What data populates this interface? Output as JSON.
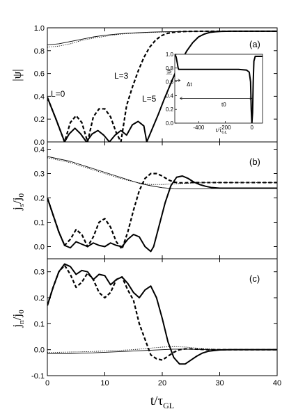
{
  "chart_data": {
    "type": "line",
    "x_axis": {
      "label_main": "t/τ",
      "label_sub": "GL",
      "range": [
        0,
        40
      ],
      "ticks": [
        "0",
        "10",
        "20",
        "30",
        "40"
      ]
    },
    "panels": [
      {
        "id": "a",
        "label": "(a)",
        "ylabel": "|ψ|",
        "yrange": [
          0,
          1.0
        ],
        "yticks": [
          "0.0",
          "0.2",
          "0.4",
          "0.6",
          "0.8",
          "1.0"
        ],
        "series": [
          {
            "style": "thin-solid",
            "x": [
              0,
              2,
              4,
              6,
              8,
              10,
              12,
              14,
              16,
              18,
              20,
              24,
              28,
              32,
              36,
              40
            ],
            "y": [
              0.85,
              0.86,
              0.88,
              0.9,
              0.92,
              0.935,
              0.945,
              0.953,
              0.958,
              0.962,
              0.965,
              0.968,
              0.97,
              0.971,
              0.972,
              0.972
            ]
          },
          {
            "style": "thin-dotted",
            "x": [
              0,
              2,
              4,
              6,
              8,
              10,
              12,
              14,
              16,
              18,
              20,
              24,
              28,
              32,
              36,
              40
            ],
            "y": [
              0.83,
              0.84,
              0.86,
              0.89,
              0.91,
              0.925,
              0.94,
              0.95,
              0.955,
              0.96,
              0.963,
              0.967,
              0.969,
              0.97,
              0.971,
              0.971
            ]
          },
          {
            "style": "thick-solid",
            "x": [
              0,
              1.5,
              3,
              3.8,
              4.8,
              5.8,
              6.8,
              7.8,
              8.8,
              9.8,
              10.8,
              11.8,
              12.8,
              13.8,
              14.8,
              15.8,
              16.8,
              17.3,
              18.3,
              19.3,
              20.3,
              21.3,
              22.3,
              23.3,
              24.3,
              25.3,
              26.3,
              27.3,
              28.3,
              29.3,
              30.3,
              32,
              35,
              40
            ],
            "y": [
              0.39,
              0.2,
              0.0,
              0.07,
              0.12,
              0.07,
              0.0,
              0.07,
              0.1,
              0.06,
              0.0,
              0.06,
              0.1,
              0.06,
              0.15,
              0.18,
              0.14,
              0.0,
              0.12,
              0.24,
              0.37,
              0.49,
              0.61,
              0.71,
              0.8,
              0.87,
              0.92,
              0.945,
              0.96,
              0.966,
              0.969,
              0.97,
              0.97,
              0.97
            ]
          },
          {
            "style": "thick-dashed",
            "x": [
              0,
              1.5,
              3,
              4,
              5,
              6,
              7,
              8,
              9,
              10,
              11,
              12,
              12.8,
              13.8,
              14.8,
              15.8,
              16.8,
              17.8,
              18.8,
              19.8,
              20.8,
              21.8,
              22.8,
              23.8,
              25,
              27,
              30,
              35,
              40
            ],
            "y": [
              0.39,
              0.2,
              0.0,
              0.17,
              0.23,
              0.17,
              0.0,
              0.22,
              0.29,
              0.29,
              0.22,
              0.08,
              0.0,
              0.32,
              0.48,
              0.62,
              0.74,
              0.83,
              0.89,
              0.93,
              0.95,
              0.96,
              0.965,
              0.968,
              0.969,
              0.97,
              0.97,
              0.97,
              0.97
            ]
          }
        ],
        "annotations": [
          "L=0",
          "L=3",
          "L=5"
        ],
        "inset": {
          "ylabel": "|ψ|",
          "xlabel_main": "t/τ",
          "xlabel_sub": "GL",
          "xrange": [
            -580,
            80
          ],
          "yrange": [
            0,
            1.0
          ],
          "xticks": [
            "-400",
            "-200",
            "0"
          ],
          "yticks": [
            "0.0",
            "0.2",
            "0.4",
            "0.6",
            "0.8",
            "1.0"
          ],
          "annotations": [
            "Δt",
            "t0"
          ],
          "series": [
            {
              "style": "thick-solid",
              "x": [
                -580,
                -570,
                -560,
                -555,
                -550,
                -540,
                -500,
                -400,
                -300,
                -200,
                -100,
                -40,
                -20,
                -10,
                -5,
                0,
                5,
                10,
                15,
                25,
                40,
                60,
                80
              ],
              "y": [
                1.0,
                0.96,
                0.86,
                0.8,
                0.78,
                0.78,
                0.78,
                0.78,
                0.78,
                0.78,
                0.78,
                0.77,
                0.74,
                0.6,
                0.2,
                0.0,
                0.15,
                0.6,
                0.9,
                0.97,
                0.97,
                0.97,
                0.97
              ]
            }
          ]
        }
      },
      {
        "id": "b",
        "label": "(b)",
        "ylabel_main": "j",
        "ylabel_sub": "s",
        "ylabel_tail": "/j",
        "ylabel_tail_sub": "0",
        "yrange": [
          -0.05,
          0.43
        ],
        "yticks": [
          "0.0",
          "0.1",
          "0.2",
          "0.3",
          "0.4"
        ],
        "series": [
          {
            "style": "thin-solid",
            "x": [
              0,
              2,
              4,
              6,
              8,
              10,
              12,
              14,
              16,
              18,
              20,
              22,
              24,
              26,
              28,
              30,
              35,
              40
            ],
            "y": [
              0.37,
              0.36,
              0.35,
              0.335,
              0.32,
              0.305,
              0.29,
              0.275,
              0.26,
              0.25,
              0.242,
              0.238,
              0.237,
              0.237,
              0.238,
              0.239,
              0.24,
              0.24
            ]
          },
          {
            "style": "thin-dotted",
            "x": [
              0,
              2,
              4,
              6,
              8,
              10,
              12,
              14,
              16,
              18,
              20,
              22,
              24,
              26,
              28,
              30,
              35,
              40
            ],
            "y": [
              0.365,
              0.355,
              0.345,
              0.33,
              0.315,
              0.3,
              0.285,
              0.272,
              0.262,
              0.255,
              0.255,
              0.258,
              0.26,
              0.262,
              0.263,
              0.263,
              0.263,
              0.263
            ]
          },
          {
            "style": "thick-solid",
            "x": [
              0,
              1,
              2,
              3,
              4,
              5,
              6,
              7,
              8,
              9,
              10,
              11,
              12,
              13,
              14,
              15,
              16,
              17,
              18,
              18.5,
              19.5,
              20.5,
              21.5,
              22.5,
              23.5,
              24.5,
              25.5,
              26.5,
              27.5,
              28.5,
              30,
              32,
              35,
              40
            ],
            "y": [
              0.2,
              0.13,
              0.06,
              0.005,
              -0.005,
              0.02,
              0.01,
              0.0,
              0.015,
              0.005,
              0.0,
              0.015,
              0.005,
              0.0,
              0.03,
              0.05,
              0.04,
              0.0,
              -0.02,
              0.0,
              0.09,
              0.18,
              0.25,
              0.285,
              0.29,
              0.28,
              0.265,
              0.255,
              0.248,
              0.243,
              0.24,
              0.24,
              0.24,
              0.24
            ]
          },
          {
            "style": "thick-dashed",
            "x": [
              0,
              1,
              2,
              3,
              4,
              5,
              6,
              7,
              8,
              9,
              10,
              11,
              12,
              13,
              14,
              15,
              16,
              17,
              18,
              19,
              20,
              21,
              22,
              23,
              24,
              25,
              26,
              27,
              28,
              30,
              35,
              40
            ],
            "y": [
              0.2,
              0.13,
              0.06,
              0.005,
              0.03,
              0.07,
              0.05,
              0.0,
              0.04,
              0.1,
              0.115,
              0.08,
              0.02,
              -0.01,
              0.06,
              0.15,
              0.23,
              0.28,
              0.3,
              0.3,
              0.29,
              0.275,
              0.265,
              0.262,
              0.262,
              0.263,
              0.263,
              0.263,
              0.263,
              0.263,
              0.263,
              0.263
            ]
          }
        ]
      },
      {
        "id": "c",
        "label": "(c)",
        "ylabel_main": "j",
        "ylabel_sub": "n",
        "ylabel_tail": "/j",
        "ylabel_tail_sub": "0",
        "yrange": [
          -0.1,
          0.35
        ],
        "yticks": [
          "-0.1",
          "0.0",
          "0.1",
          "0.2",
          "0.3"
        ],
        "series": [
          {
            "style": "thin-solid",
            "x": [
              0,
              2,
              4,
              6,
              8,
              10,
              12,
              14,
              16,
              18,
              20,
              22,
              24,
              26,
              28,
              30,
              35,
              40
            ],
            "y": [
              -0.015,
              -0.015,
              -0.015,
              -0.013,
              -0.012,
              -0.01,
              -0.008,
              -0.006,
              -0.004,
              -0.002,
              0.0,
              0.002,
              0.002,
              0.001,
              0.0,
              0.0,
              0.0,
              0.0
            ]
          },
          {
            "style": "thin-dotted",
            "x": [
              0,
              2,
              4,
              6,
              8,
              10,
              12,
              14,
              16,
              18,
              20,
              22,
              24,
              26,
              28,
              30,
              35,
              40
            ],
            "y": [
              -0.01,
              -0.01,
              -0.009,
              -0.008,
              -0.007,
              -0.005,
              -0.003,
              -0.001,
              0.002,
              0.006,
              0.01,
              0.012,
              0.01,
              0.006,
              0.003,
              0.001,
              0.0,
              0.0
            ]
          },
          {
            "style": "thick-solid",
            "x": [
              0,
              1,
              2,
              3,
              4,
              5,
              6,
              7,
              8,
              9,
              10,
              11,
              12,
              13,
              14,
              15,
              16,
              17,
              18,
              19,
              20,
              21,
              22,
              23,
              24,
              25,
              26,
              27,
              28,
              30,
              32,
              35,
              40
            ],
            "y": [
              0.17,
              0.24,
              0.3,
              0.33,
              0.32,
              0.29,
              0.305,
              0.3,
              0.27,
              0.29,
              0.285,
              0.25,
              0.27,
              0.28,
              0.255,
              0.22,
              0.2,
              0.23,
              0.245,
              0.2,
              0.12,
              0.03,
              -0.03,
              -0.055,
              -0.055,
              -0.04,
              -0.025,
              -0.013,
              -0.006,
              -0.001,
              0.0,
              0.0,
              0.0
            ]
          },
          {
            "style": "thick-dashed",
            "x": [
              0,
              1,
              2,
              3,
              4,
              5,
              6,
              7,
              8,
              9,
              10,
              11,
              12,
              13,
              14,
              15,
              16,
              17,
              18,
              19,
              20,
              21,
              22,
              23,
              24,
              25,
              26,
              28,
              30,
              35,
              40
            ],
            "y": [
              0.17,
              0.24,
              0.3,
              0.325,
              0.29,
              0.24,
              0.26,
              0.295,
              0.27,
              0.22,
              0.2,
              0.22,
              0.27,
              0.28,
              0.23,
              0.19,
              0.1,
              0.04,
              -0.02,
              -0.035,
              -0.04,
              -0.025,
              -0.01,
              0.0,
              0.003,
              0.003,
              0.002,
              0.0,
              0.0,
              0.0,
              0.0
            ]
          }
        ]
      }
    ]
  }
}
